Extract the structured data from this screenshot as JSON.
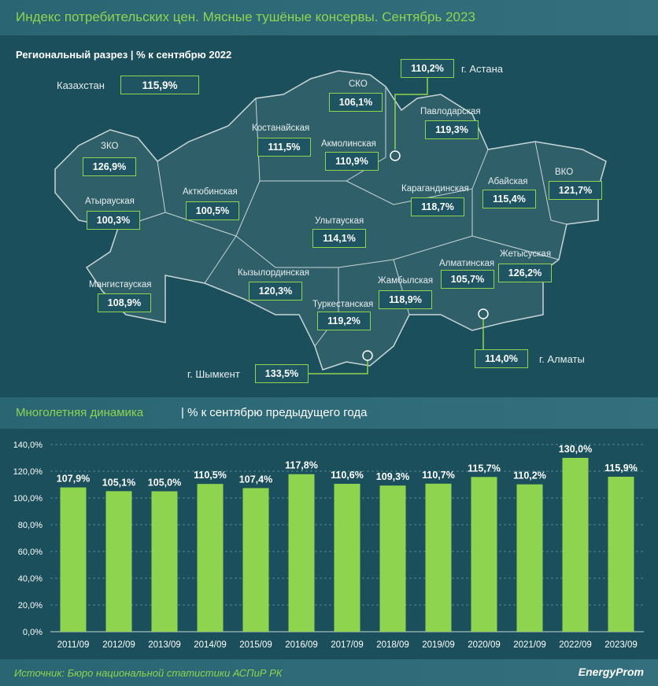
{
  "title": "Индекс потребительских цен. Мясные тушёные консервы. Сентябрь 2023",
  "map": {
    "subtitle": "Региональный разрез | % к сентябрю 2022",
    "kazakhstan": {
      "label": "Казахстан",
      "value": "115,9%"
    },
    "regions": [
      {
        "name": "г. Астана",
        "value": "110,2%"
      },
      {
        "name": "СКО",
        "value": "106,1%"
      },
      {
        "name": "Павлодарская",
        "value": "119,3%"
      },
      {
        "name": "Костанайская",
        "value": "111,5%"
      },
      {
        "name": "Акмолинская",
        "value": "110,9%"
      },
      {
        "name": "ЗКО",
        "value": "126,9%"
      },
      {
        "name": "ВКО",
        "value": "121,7%"
      },
      {
        "name": "Абайская",
        "value": "115,4%"
      },
      {
        "name": "Актюбинская",
        "value": "100,5%"
      },
      {
        "name": "Атырауская",
        "value": "100,3%"
      },
      {
        "name": "Карагандинская",
        "value": "118,7%"
      },
      {
        "name": "Улытауская",
        "value": "114,1%"
      },
      {
        "name": "Мангистауская",
        "value": "108,9%"
      },
      {
        "name": "Кызылординская",
        "value": "120,3%"
      },
      {
        "name": "Жетысуская",
        "value": "126,2%"
      },
      {
        "name": "Алматинская",
        "value": "105,7%"
      },
      {
        "name": "Жамбылская",
        "value": "118,9%"
      },
      {
        "name": "Туркестанская",
        "value": "119,2%"
      },
      {
        "name": "г. Шымкент",
        "value": "133,5%"
      },
      {
        "name": "г. Алматы",
        "value": "114,0%"
      }
    ]
  },
  "chart_section": {
    "title_green": "Многолетняя динамика",
    "title_white": "| % к сентябрю предыдущего года"
  },
  "chart_data": {
    "type": "bar",
    "categories": [
      "2011/09",
      "2012/09",
      "2013/09",
      "2014/09",
      "2015/09",
      "2016/09",
      "2017/09",
      "2018/09",
      "2019/09",
      "2020/09",
      "2021/09",
      "2022/09",
      "2023/09"
    ],
    "values": [
      107.9,
      105.1,
      105.0,
      110.5,
      107.4,
      117.8,
      110.6,
      109.3,
      110.7,
      115.7,
      110.2,
      130.0,
      115.9
    ],
    "data_labels": [
      "107,9%",
      "105,1%",
      "105,0%",
      "110,5%",
      "107,4%",
      "117,8%",
      "110,6%",
      "109,3%",
      "110,7%",
      "115,7%",
      "110,2%",
      "130,0%",
      "115,9%"
    ],
    "yticks": [
      "0,0%",
      "20,0%",
      "40,0%",
      "60,0%",
      "80,0%",
      "100,0%",
      "120,0%",
      "140,0%"
    ],
    "ylim": [
      0,
      140
    ],
    "grid": true,
    "bar_color": "#8fd44e"
  },
  "footer": {
    "source": "Источник: Бюро национальной статистики АСПиР РК",
    "logo": "EnergyProm"
  }
}
